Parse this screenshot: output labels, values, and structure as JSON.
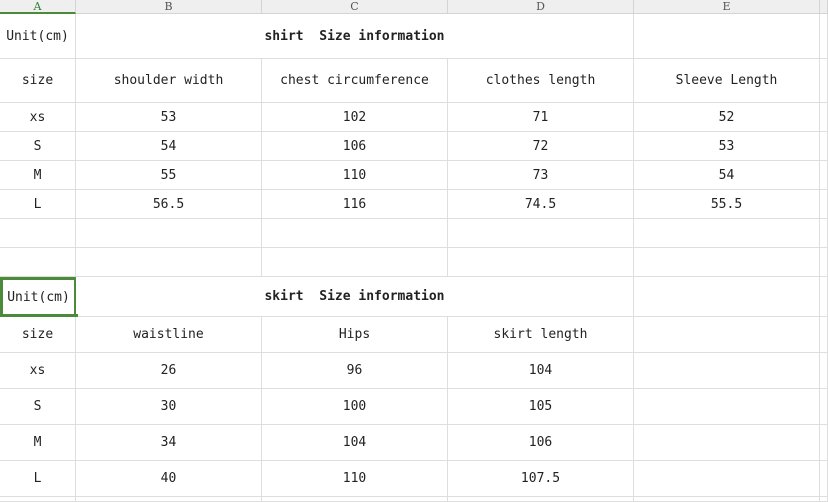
{
  "columns": [
    "A",
    "B",
    "C",
    "D",
    "E"
  ],
  "active_column": "A",
  "selection_color": "#4a8a3a",
  "shirt": {
    "unit": "Unit(cm)",
    "title": "shirt  Size information",
    "headers": [
      "size",
      "shoulder width",
      "chest circumference",
      "clothes length",
      "Sleeve Length"
    ],
    "rows": [
      [
        "xs",
        "53",
        "102",
        "71",
        "52"
      ],
      [
        "S",
        "54",
        "106",
        "72",
        "53"
      ],
      [
        "M",
        "55",
        "110",
        "73",
        "54"
      ],
      [
        "L",
        "56.5",
        "116",
        "74.5",
        "55.5"
      ]
    ]
  },
  "skirt": {
    "unit": "Unit(cm)",
    "title": "skirt  Size information",
    "headers": [
      "size",
      "waistline",
      "Hips",
      "skirt length",
      ""
    ],
    "rows": [
      [
        "xs",
        "26",
        "96",
        "104",
        ""
      ],
      [
        "S",
        "30",
        "100",
        "105",
        ""
      ],
      [
        "M",
        "34",
        "104",
        "106",
        ""
      ],
      [
        "L",
        "40",
        "110",
        "107.5",
        ""
      ]
    ]
  }
}
